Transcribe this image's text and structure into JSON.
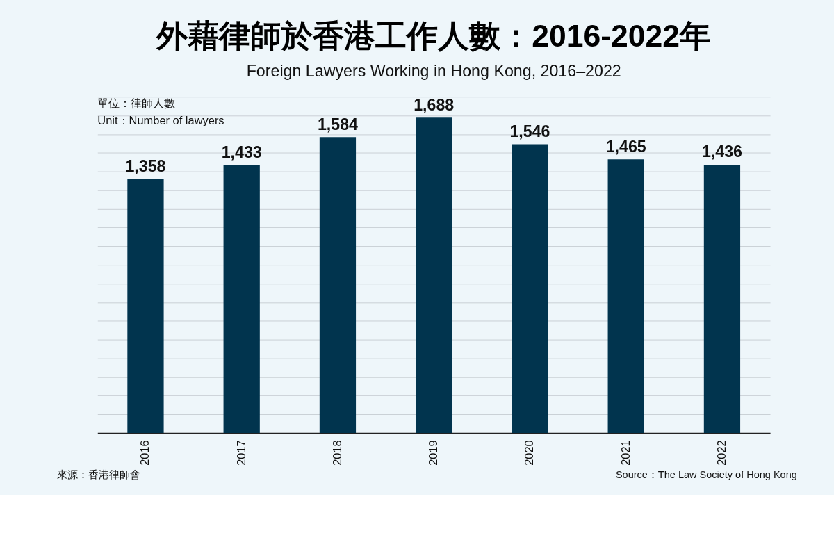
{
  "chart_data": {
    "type": "bar",
    "title": "外藉律師於香港工作人數：2016-2022年",
    "subtitle": "Foreign Lawyers Working in Hong Kong, 2016–2022",
    "annotations": [
      "單位：律師人數",
      "Unit：Number of lawyers",
      "來源：香港律師會",
      "Source：The Law Society of Hong Kong"
    ],
    "categories": [
      "2016",
      "2017",
      "2018",
      "2019",
      "2020",
      "2021",
      "2022"
    ],
    "values": [
      1358,
      1433,
      1584,
      1688,
      1546,
      1465,
      1436
    ],
    "value_labels": [
      "1,358",
      "1,433",
      "1,584",
      "1,688",
      "1,546",
      "1,465",
      "1,436"
    ],
    "color": "#01344e",
    "grid": "y",
    "tick_labels": "x"
  }
}
